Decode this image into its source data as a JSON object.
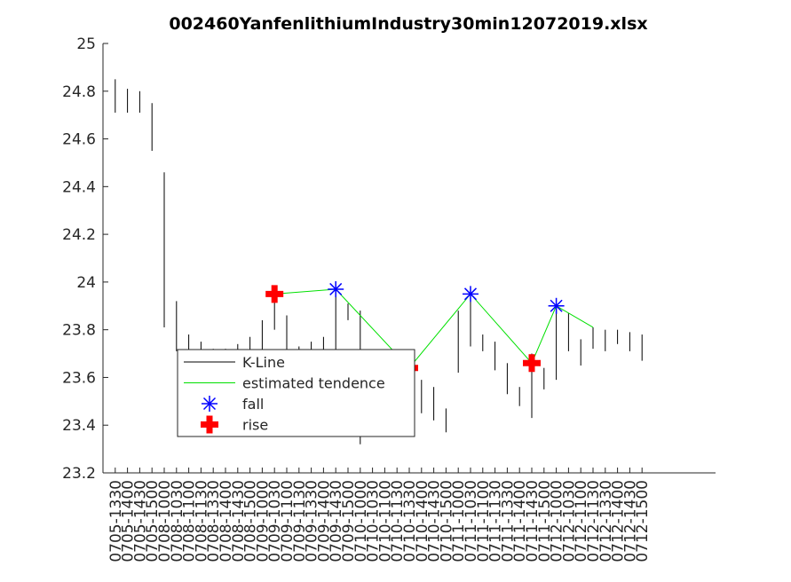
{
  "chart_data": {
    "type": "kline",
    "title": "002460YanfenlithiumIndustry30min12072019.xlsx",
    "categories": [
      "0705-1330",
      "0705-1400",
      "0705-1430",
      "0705-1500",
      "0708-1000",
      "0708-1030",
      "0708-1100",
      "0708-1130",
      "0708-1330",
      "0708-1400",
      "0708-1430",
      "0708-1500",
      "0709-1000",
      "0709-1030",
      "0709-1100",
      "0709-1130",
      "0709-1330",
      "0709-1400",
      "0709-1430",
      "0709-1500",
      "0710-1000",
      "0710-1030",
      "0710-1100",
      "0710-1130",
      "0710-1330",
      "0710-1400",
      "0710-1430",
      "0710-1500",
      "0711-1000",
      "0711-1030",
      "0711-1100",
      "0711-1130",
      "0711-1330",
      "0711-1400",
      "0711-1430",
      "0711-1500",
      "0712-1000",
      "0712-1030",
      "0712-1100",
      "0712-1130",
      "0712-1330",
      "0712-1400",
      "0712-1430",
      "0712-1500"
    ],
    "xlim": [
      0,
      50
    ],
    "ylim": [
      23.2,
      25
    ],
    "yticks": [
      23.2,
      23.4,
      23.6,
      23.8,
      24,
      24.2,
      24.4,
      24.6,
      24.8,
      25
    ],
    "series": [
      {
        "name": "K-Line",
        "color": "#000000",
        "low": [
          24.71,
          24.71,
          24.71,
          24.55,
          23.81,
          23.71,
          23.7,
          23.7,
          23.7,
          23.7,
          23.7,
          23.7,
          23.7,
          23.8,
          23.7,
          23.7,
          23.7,
          23.7,
          23.7,
          23.84,
          23.32,
          23.55,
          23.5,
          23.5,
          23.48,
          23.45,
          23.42,
          23.37,
          23.62,
          23.73,
          23.71,
          23.63,
          23.53,
          23.48,
          23.43,
          23.55,
          23.59,
          23.71,
          23.65,
          23.72,
          23.71,
          23.74,
          23.71,
          23.67
        ],
        "high": [
          24.85,
          24.81,
          24.8,
          24.75,
          24.46,
          23.92,
          23.78,
          23.75,
          23.72,
          23.72,
          23.74,
          23.77,
          23.84,
          23.97,
          23.86,
          23.73,
          23.75,
          23.77,
          23.98,
          23.91,
          23.88,
          23.7,
          23.65,
          23.63,
          23.62,
          23.59,
          23.56,
          23.47,
          23.88,
          23.96,
          23.78,
          23.75,
          23.66,
          23.56,
          23.7,
          23.64,
          23.9,
          23.87,
          23.76,
          23.81,
          23.8,
          23.8,
          23.79,
          23.78
        ]
      },
      {
        "name": "estimated tendence",
        "color": "#00e000",
        "x": [
          14,
          19,
          25,
          30,
          35,
          37,
          40
        ],
        "values": [
          23.95,
          23.97,
          23.64,
          23.95,
          23.66,
          23.9,
          23.81
        ]
      },
      {
        "name": "fall",
        "color": "#0000ff",
        "marker": "star",
        "x": [
          19,
          30,
          37
        ],
        "values": [
          23.97,
          23.95,
          23.9
        ]
      },
      {
        "name": "rise",
        "color": "#ff0000",
        "marker": "plus",
        "x": [
          14,
          25,
          35
        ],
        "values": [
          23.95,
          23.64,
          23.66
        ]
      }
    ]
  }
}
